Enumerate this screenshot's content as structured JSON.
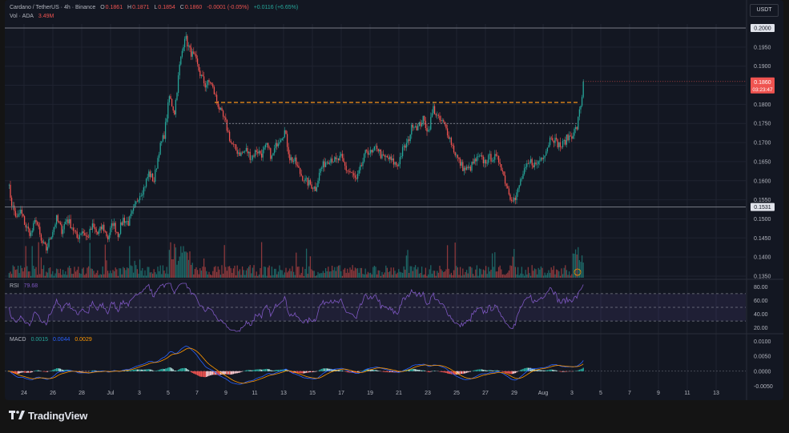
{
  "header": {
    "symbol": "Cardano / TetherUS · 4h · Binance",
    "open_label": "O",
    "open": "0.1861",
    "high_label": "H",
    "high": "0.1871",
    "low_label": "L",
    "low": "0.1854",
    "close_label": "C",
    "close": "0.1860",
    "change": "-0.0001 (-0.05%)",
    "change2": "+0.0116 (+6.65%)",
    "vol_label": "Vol · ADA",
    "vol_value": "3.49M",
    "currency": "USDT"
  },
  "colors": {
    "up": "#26a69a",
    "down": "#ef5350",
    "bg": "#131722",
    "grid": "#1f2330",
    "text": "#b2b5be",
    "rsi": "#7e57c2",
    "macd": "#2962ff",
    "signal": "#ff9800",
    "level": "#f7931a"
  },
  "chart_data": [
    {
      "type": "candlestick",
      "name": "price",
      "ylim": [
        0.135,
        0.2
      ],
      "y_ticks": [
        "0.1950",
        "0.1900",
        "0.1850",
        "0.1800",
        "0.1750",
        "0.1700",
        "0.1650",
        "0.1600",
        "0.1550",
        "0.1500",
        "0.1450",
        "0.1400",
        "0.1350"
      ],
      "horizontal_lines": [
        {
          "value": 0.2,
          "label": "0.2000",
          "style": "solid"
        },
        {
          "value": 0.1531,
          "label": "0.1531",
          "style": "solid"
        },
        {
          "value": 0.1805,
          "style": "dashed"
        },
        {
          "value": 0.175,
          "style": "dotted"
        }
      ],
      "current_price": {
        "value": 0.186,
        "label": "0.1860",
        "countdown": "03:23:47"
      },
      "path": [
        [
          0,
          0.16
        ],
        [
          3,
          0.154
        ],
        [
          7,
          0.15
        ],
        [
          10,
          0.152
        ],
        [
          14,
          0.148
        ],
        [
          18,
          0.146
        ],
        [
          22,
          0.15
        ],
        [
          26,
          0.144
        ],
        [
          30,
          0.142
        ],
        [
          34,
          0.146
        ],
        [
          38,
          0.15
        ],
        [
          42,
          0.147
        ],
        [
          46,
          0.15
        ],
        [
          50,
          0.148
        ],
        [
          54,
          0.145
        ],
        [
          58,
          0.147
        ],
        [
          62,
          0.145
        ],
        [
          66,
          0.148
        ],
        [
          70,
          0.146
        ],
        [
          74,
          0.148
        ],
        [
          78,
          0.145
        ],
        [
          82,
          0.149
        ],
        [
          86,
          0.146
        ],
        [
          90,
          0.15
        ],
        [
          94,
          0.149
        ],
        [
          98,
          0.152
        ],
        [
          102,
          0.156
        ],
        [
          106,
          0.158
        ],
        [
          110,
          0.162
        ],
        [
          114,
          0.16
        ],
        [
          118,
          0.168
        ],
        [
          122,
          0.172
        ],
        [
          126,
          0.182
        ],
        [
          130,
          0.178
        ],
        [
          134,
          0.19
        ],
        [
          138,
          0.198
        ],
        [
          142,
          0.194
        ],
        [
          146,
          0.192
        ],
        [
          150,
          0.188
        ],
        [
          154,
          0.185
        ],
        [
          158,
          0.186
        ],
        [
          162,
          0.182
        ],
        [
          166,
          0.178
        ],
        [
          170,
          0.175
        ],
        [
          174,
          0.17
        ],
        [
          178,
          0.168
        ],
        [
          182,
          0.167
        ],
        [
          186,
          0.168
        ],
        [
          190,
          0.166
        ],
        [
          194,
          0.168
        ],
        [
          198,
          0.167
        ],
        [
          202,
          0.169
        ],
        [
          206,
          0.166
        ],
        [
          210,
          0.17
        ],
        [
          214,
          0.172
        ],
        [
          216,
          0.173
        ],
        [
          220,
          0.166
        ],
        [
          224,
          0.165
        ],
        [
          228,
          0.162
        ],
        [
          232,
          0.16
        ],
        [
          236,
          0.159
        ],
        [
          240,
          0.158
        ],
        [
          244,
          0.163
        ],
        [
          248,
          0.165
        ],
        [
          252,
          0.166
        ],
        [
          256,
          0.165
        ],
        [
          260,
          0.166
        ],
        [
          264,
          0.163
        ],
        [
          268,
          0.162
        ],
        [
          272,
          0.16
        ],
        [
          276,
          0.164
        ],
        [
          280,
          0.168
        ],
        [
          284,
          0.167
        ],
        [
          288,
          0.169
        ],
        [
          292,
          0.166
        ],
        [
          296,
          0.166
        ],
        [
          300,
          0.165
        ],
        [
          304,
          0.164
        ],
        [
          308,
          0.168
        ],
        [
          312,
          0.17
        ],
        [
          316,
          0.175
        ],
        [
          320,
          0.174
        ],
        [
          324,
          0.176
        ],
        [
          328,
          0.173
        ],
        [
          332,
          0.179
        ],
        [
          336,
          0.176
        ],
        [
          340,
          0.175
        ],
        [
          344,
          0.172
        ],
        [
          348,
          0.168
        ],
        [
          352,
          0.165
        ],
        [
          356,
          0.163
        ],
        [
          360,
          0.163
        ],
        [
          364,
          0.165
        ],
        [
          368,
          0.166
        ],
        [
          372,
          0.165
        ],
        [
          376,
          0.166
        ],
        [
          380,
          0.166
        ],
        [
          384,
          0.165
        ],
        [
          388,
          0.16
        ],
        [
          392,
          0.156
        ],
        [
          396,
          0.155
        ],
        [
          400,
          0.16
        ],
        [
          404,
          0.163
        ],
        [
          408,
          0.165
        ],
        [
          412,
          0.164
        ],
        [
          416,
          0.166
        ],
        [
          420,
          0.168
        ],
        [
          424,
          0.172
        ],
        [
          428,
          0.17
        ],
        [
          432,
          0.169
        ],
        [
          436,
          0.171
        ],
        [
          440,
          0.172
        ],
        [
          444,
          0.174
        ],
        [
          446,
          0.178
        ],
        [
          448,
          0.182
        ],
        [
          449,
          0.186
        ]
      ],
      "volume_ylim": [
        0,
        1
      ]
    },
    {
      "type": "line",
      "name": "RSI",
      "label": "RSI",
      "value": "79.68",
      "ylim": [
        15,
        85
      ],
      "y_ticks": [
        "80.00",
        "60.00",
        "40.00",
        "20.00"
      ],
      "band": [
        30,
        70
      ]
    },
    {
      "type": "line",
      "name": "MACD",
      "label": "MACD",
      "values": [
        "0.0015",
        "0.0044",
        "0.0029"
      ],
      "ylim": [
        -0.0065,
        0.0115
      ],
      "y_ticks": [
        "0.0100",
        "0.0050",
        "0.0000",
        "-0.0050"
      ]
    }
  ],
  "x_axis": {
    "labels": [
      "24",
      "26",
      "28",
      "Jul",
      "3",
      "5",
      "7",
      "9",
      "11",
      "13",
      "15",
      "17",
      "19",
      "21",
      "23",
      "25",
      "27",
      "29",
      "Aug",
      "3",
      "5",
      "7",
      "9",
      "11",
      "13"
    ]
  },
  "footer": {
    "brand": "TradingView"
  }
}
